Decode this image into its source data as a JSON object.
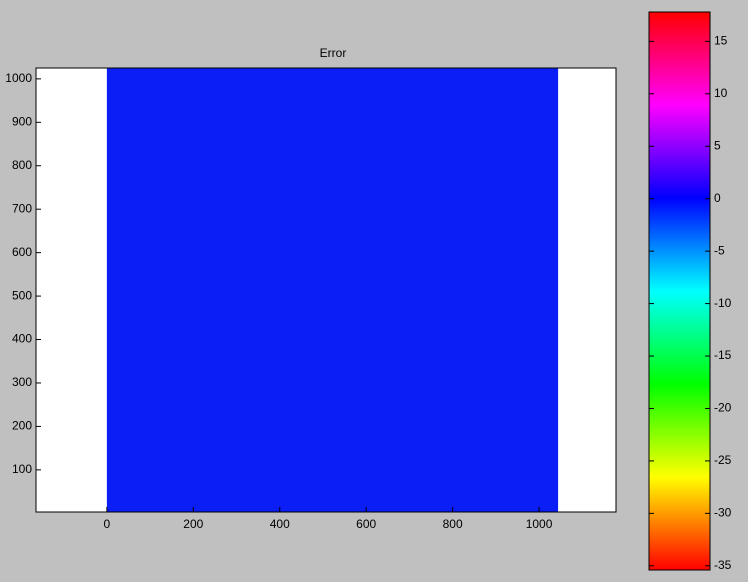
{
  "chart_data": {
    "type": "image",
    "title": "Error",
    "xlim": [
      -164,
      1178
    ],
    "ylim": [
      3,
      1025
    ],
    "xticks": [
      0,
      200,
      400,
      600,
      800,
      1000
    ],
    "yticks": [
      100,
      200,
      300,
      400,
      500,
      600,
      700,
      800,
      900,
      1000
    ],
    "image_x": [
      0,
      1044
    ],
    "image_color": "#0a1ef5",
    "colorbar": {
      "clim": [
        -35.4,
        17.8
      ],
      "ticks": [
        15,
        10,
        5,
        0,
        -5,
        -10,
        -15,
        -20,
        -25,
        -30,
        -35
      ],
      "colormap": [
        "#ff0000",
        "#ffff00",
        "#00ff00",
        "#00ffff",
        "#0000ff",
        "#ff00ff",
        "#ff0000"
      ]
    }
  }
}
